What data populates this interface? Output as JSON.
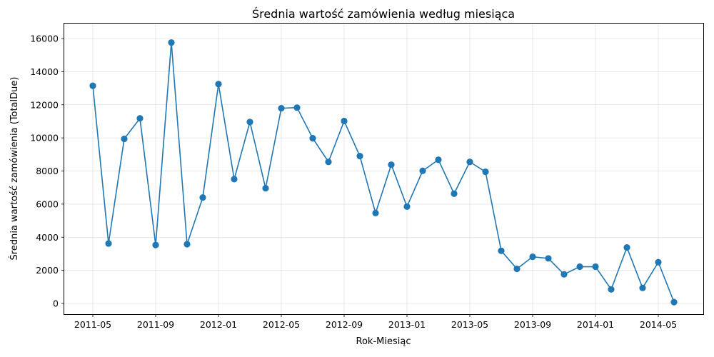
{
  "chart_data": {
    "type": "line",
    "title": "Średnia wartość zamówienia według miesiąca",
    "xlabel": "Rok-Miesiąc",
    "ylabel": "Średnia wartość zamówienia (TotalDue)",
    "x_tick_labels": [
      "2011-05",
      "2011-09",
      "2012-01",
      "2012-05",
      "2012-09",
      "2013-01",
      "2013-05",
      "2013-09",
      "2014-01",
      "2014-05"
    ],
    "y_ticks": [
      0,
      2000,
      4000,
      6000,
      8000,
      10000,
      12000,
      14000,
      16000
    ],
    "ylim": [
      -750,
      16550
    ],
    "grid": true,
    "line_color": "#1f77b4",
    "series": [
      {
        "x": [
          "2011-05",
          "2011-06",
          "2011-07",
          "2011-08",
          "2011-09",
          "2011-10",
          "2011-11",
          "2011-12",
          "2012-01",
          "2012-02",
          "2012-03",
          "2012-04",
          "2012-05",
          "2012-06",
          "2012-07",
          "2012-08",
          "2012-09",
          "2012-10",
          "2012-11",
          "2012-12",
          "2013-01",
          "2013-02",
          "2013-03",
          "2013-04",
          "2013-05",
          "2013-06",
          "2013-07",
          "2013-08",
          "2013-09",
          "2013-10",
          "2013-11",
          "2013-12",
          "2014-01",
          "2014-02",
          "2014-03",
          "2014-04",
          "2014-05",
          "2014-06"
        ],
        "values": [
          13150,
          3620,
          9940,
          11180,
          3530,
          15760,
          3580,
          6400,
          13250,
          7510,
          10960,
          6960,
          11790,
          11830,
          9980,
          8550,
          11020,
          8900,
          5460,
          8380,
          5850,
          8010,
          8680,
          6630,
          8550,
          7950,
          3180,
          2090,
          2820,
          2720,
          1760,
          2220,
          2220,
          850,
          3380,
          940,
          2490,
          80
        ]
      }
    ]
  }
}
